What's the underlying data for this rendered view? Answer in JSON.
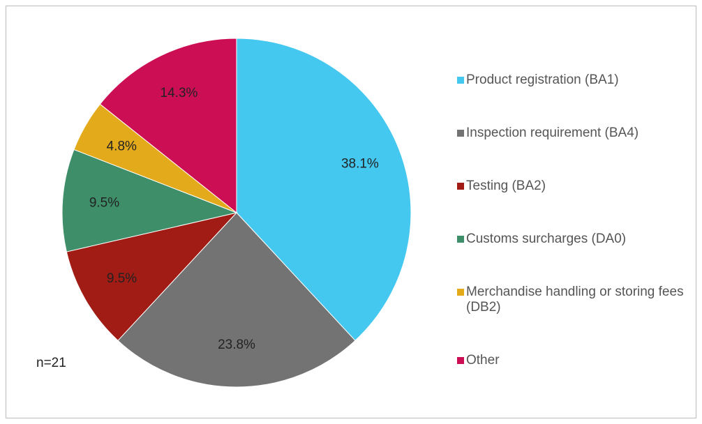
{
  "chart_data": {
    "type": "pie",
    "categories": [
      "Product registration (BA1)",
      "Inspection requirement (BA4)",
      "Testing (BA2)",
      "Customs surcharges (DA0)",
      "Merchandise handling or storing fees (DB2)",
      "Other"
    ],
    "values": [
      38.1,
      23.8,
      9.5,
      9.5,
      4.8,
      14.3
    ],
    "value_labels": [
      "38.1%",
      "23.8%",
      "9.5%",
      "9.5%",
      "4.8%",
      "14.3%"
    ],
    "colors": [
      "#45c8f0",
      "#737373",
      "#a11c14",
      "#3d8e69",
      "#e3aa1c",
      "#cc0f55"
    ],
    "annotation": "n=21",
    "legend": "right"
  }
}
